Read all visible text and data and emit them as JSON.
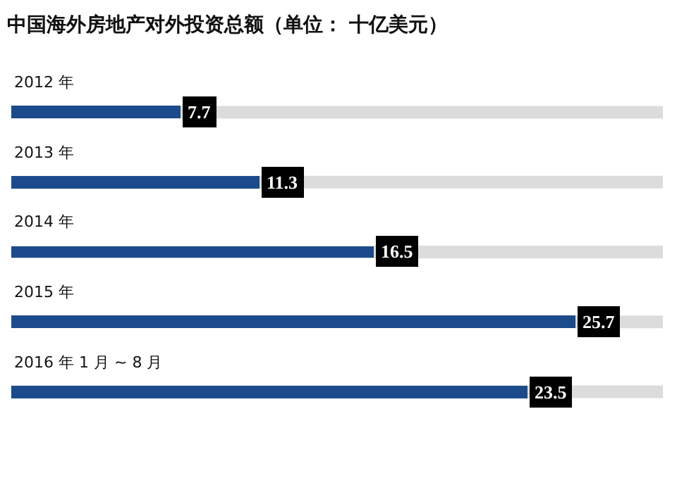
{
  "chart_data": {
    "type": "bar",
    "orientation": "horizontal",
    "title": "中国海外房地产对外投资总额（单位： 十亿美元）",
    "categories": [
      "2012 年",
      "2013 年",
      "2014 年",
      "2015 年",
      "2016 年 1 月 ~ 8 月"
    ],
    "values": [
      7.7,
      11.3,
      16.5,
      25.7,
      23.5
    ],
    "color": "#1c4b8c",
    "data_labels": true,
    "grid": false
  }
}
